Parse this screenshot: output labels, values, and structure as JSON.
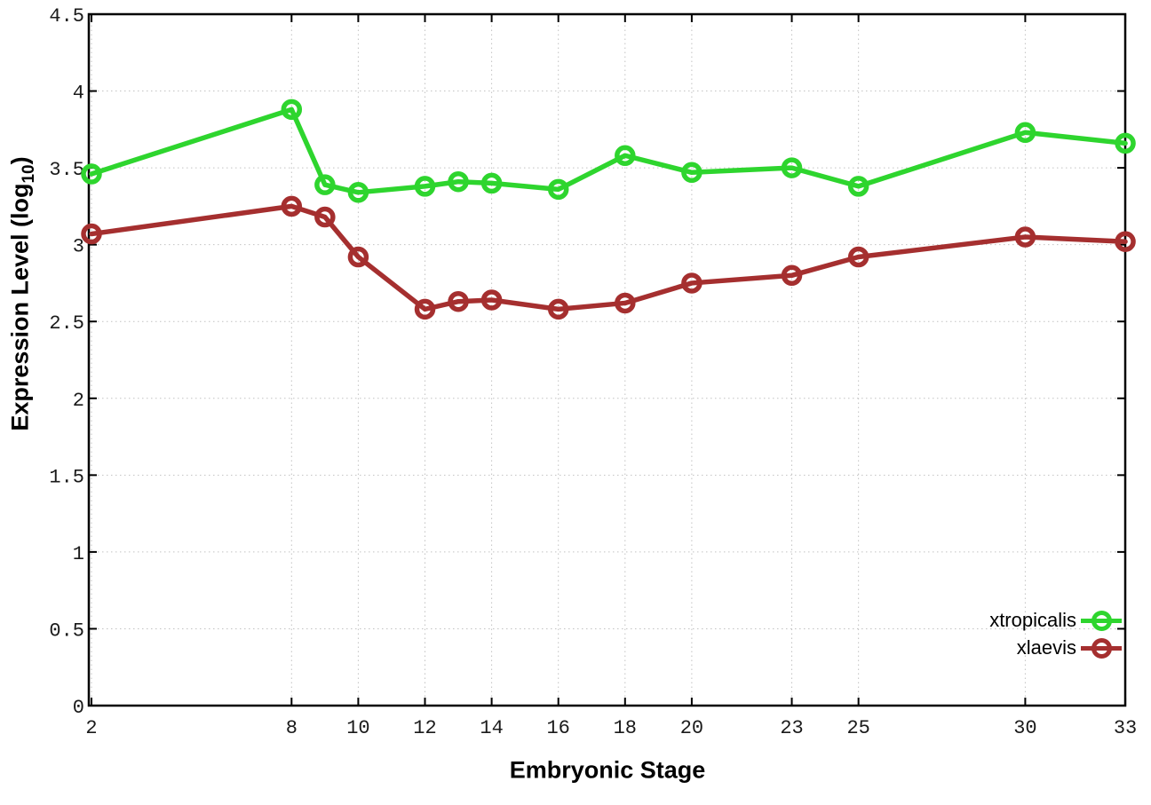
{
  "chart_data": {
    "type": "line",
    "title": "",
    "xlabel": "Embryonic Stage",
    "ylabel": "Expression Level (log10)",
    "ylabel_parts": {
      "main": "Expression Level (log",
      "sub": "10",
      "suffix": ")"
    },
    "x": [
      2,
      8,
      9,
      10,
      12,
      13,
      14,
      16,
      18,
      20,
      23,
      25,
      30,
      33
    ],
    "series": [
      {
        "name": "xtropicalis",
        "color": "#2ed52e",
        "values": [
          3.46,
          3.88,
          3.39,
          3.34,
          3.38,
          3.41,
          3.4,
          3.36,
          3.58,
          3.47,
          3.5,
          3.38,
          3.73,
          3.66
        ]
      },
      {
        "name": "xlaevis",
        "color": "#a52f2f",
        "values": [
          3.07,
          3.25,
          3.18,
          2.92,
          2.58,
          2.63,
          2.64,
          2.58,
          2.62,
          2.75,
          2.8,
          2.92,
          3.05,
          3.02
        ]
      }
    ],
    "xticks": [
      2,
      8,
      10,
      12,
      14,
      16,
      18,
      20,
      23,
      25,
      30,
      33
    ],
    "yticks": [
      0,
      0.5,
      1,
      1.5,
      2,
      2.5,
      3,
      3.5,
      4,
      4.5
    ],
    "ytick_labels": [
      "0",
      "0.5",
      "1",
      "1.5",
      "2",
      "2.5",
      "3",
      "3.5",
      "4",
      "4.5"
    ],
    "xlim": [
      1.92,
      33
    ],
    "ylim": [
      0,
      4.5
    ],
    "grid": true,
    "grid_color": "#c2c2c2",
    "axis_color": "#000000",
    "legend_position": "bottom-right",
    "legend": [
      "xtropicalis",
      "xlaevis"
    ]
  }
}
